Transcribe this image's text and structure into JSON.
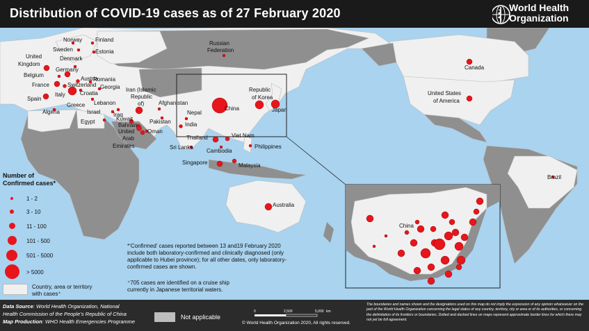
{
  "title": "Distribution of COVID-19 cases as of 27 February 2020",
  "who": {
    "line1": "World Health",
    "line2": "Organization"
  },
  "colors": {
    "case_dot": "#e8151b",
    "land_with_cases": "#f0f0f0",
    "land": "#8f8f8f",
    "not_applicable": "#bdbdbd",
    "sea": "#a9d3ef"
  },
  "labels": {
    "norway": "Norway",
    "finland": "Finland",
    "sweden": "Sweden",
    "estonia": "Estonia",
    "united_kingdom_1": "United",
    "united_kingdom_2": "Kingdom",
    "denmark": "Denmark",
    "germany": "Germany",
    "belgium": "Belgium",
    "austria": "Austria",
    "romania": "Romania",
    "france": "France",
    "switzerland": "Switzerland",
    "georgia": "Georgia",
    "iran_1": "Iran (Islamic",
    "iran_2": "Republic",
    "iran_3": "of)",
    "spain": "Spain",
    "italy": "Italy",
    "croatia": "Croatia",
    "algeria": "Algeria",
    "greece": "Greece",
    "lebanon": "Lebanon",
    "israel": "Israel",
    "iraq": "Iraq",
    "kuwait": "Kuwait",
    "bahrain": "Bahrain",
    "egypt": "Egypt",
    "afghanistan": "Afghanistan",
    "pakistan": "Pakistan",
    "oman": "Oman",
    "uae_1": "United",
    "uae_2": "Arab",
    "uae_3": "Emirates",
    "russia_1": "Russian",
    "russia_2": "Federation",
    "nepal": "Nepal",
    "india": "India",
    "china": "China",
    "korea_1": "Republic",
    "korea_2": "of Korea",
    "japan": "Japan",
    "sri_lanka": "Sri Lanka",
    "thailand": "Thailand",
    "viet_nam": "Viet Nam",
    "cambodia": "Cambodia",
    "philippines": "Philippines",
    "singapore": "Singapore",
    "malaysia": "Malaysia",
    "australia": "Australia",
    "canada": "Canada",
    "usa_1": "United States",
    "usa_2": "of America",
    "brazil": "Brazil",
    "inset_china": "China"
  },
  "legend": {
    "title_1": "Number of",
    "title_2": "Confirmed cases*",
    "items": [
      "1 - 2",
      "3 - 10",
      "11 - 100",
      "101 - 500",
      "501 - 5000",
      "> 5000"
    ],
    "country_line1": "Country, area or territory",
    "country_line2": "with cases⁺"
  },
  "footnotes": {
    "f1_line1": "*‘Confirmed’ cases reported between 13 and19 February 2020",
    "f1_line2": "include both laboratory-confirmed and clinically diagnosed (only",
    "f1_line3": "applicable to Hubei province); for all other dates, only laboratory-",
    "f1_line4": "confirmed cases are shown.",
    "f2_line1": "⁺705 cases are identified on a cruise ship",
    "f2_line2": "currently in Japanese territorial waters."
  },
  "source": {
    "ds_label": "Data Source",
    "ds_text": ": World Health Organization, National",
    "ds_text2": "Health Commission of the People’s Republic of China",
    "mp_label": "Map Production",
    "mp_text": ": WHO Health Emergencies Programme"
  },
  "not_applicable": "Not applicable",
  "scale": {
    "t0": "0",
    "t1": "2,500",
    "t2": "5,000",
    "unit": "km"
  },
  "copyright": "© World Health Organization 2020, All rights reserved.",
  "disclaimer": "The boundaries and names shown and the designations used on this map do not imply the expression of any opinion whatsoever on the part of the World Health Organization concerning the legal status of any country, territory, city or area or of its authorities, or concerning the delimitation of its frontiers or boundaries. Dotted and dashed lines on maps represent approximate border lines for which there may not yet be full agreement."
}
